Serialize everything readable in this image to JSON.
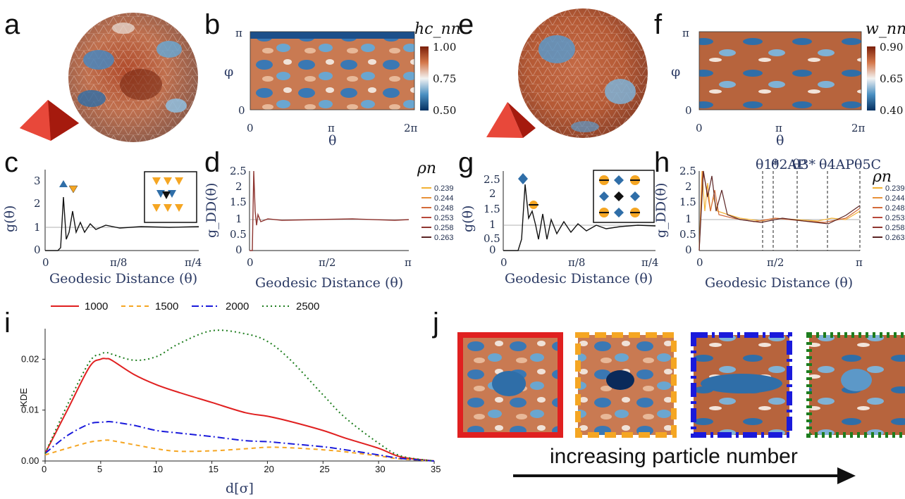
{
  "panel_labels": [
    "a",
    "b",
    "c",
    "d",
    "e",
    "f",
    "g",
    "h",
    "i",
    "j"
  ],
  "colors": {
    "low": "#053061",
    "mid": "#f2f2f2",
    "high": "#7a1f0a",
    "accent_red": "#e02020",
    "orange": "#f5a623",
    "blue": "#1a1adb",
    "green": "#1e7d1e"
  },
  "map_b": {
    "colorbar_label": "hc_nn",
    "cb_ticks": [
      "1.00",
      "0.75",
      "0.50"
    ],
    "y_ticks": [
      "π",
      "0"
    ],
    "x_ticks": [
      "0",
      "π",
      "2π"
    ],
    "ylabel": "φ",
    "xlabel": "θ"
  },
  "map_f": {
    "colorbar_label": "w_nn",
    "cb_ticks": [
      "0.90",
      "0.65",
      "0.40"
    ],
    "y_ticks": [
      "π",
      "0"
    ],
    "x_ticks": [
      "0",
      "π",
      "2π"
    ],
    "ylabel": "φ",
    "xlabel": "θ"
  },
  "panel_c": {
    "ylabel": "g(θ)",
    "xlabel": "Geodesic Distance (θ)",
    "y_ticks": [
      "3",
      "2",
      "1",
      "0"
    ],
    "x_ticks": [
      "0",
      "π/8",
      "π/4"
    ]
  },
  "panel_d": {
    "ylabel": "g_DD(θ)",
    "xlabel": "Geodesic Distance (θ)",
    "y_ticks": [
      "2.5",
      "2",
      "1.5",
      "1",
      "0.5",
      "0"
    ],
    "x_ticks": [
      "0",
      "π/2",
      "π"
    ],
    "legend_title": "ρn",
    "legend": [
      "0.239",
      "0.244",
      "0.248",
      "0.253",
      "0.258",
      "0.263"
    ]
  },
  "panel_g": {
    "ylabel": "g(θ)",
    "xlabel": "Geodesic Distance (θ)",
    "y_ticks": [
      "2.5",
      "2",
      "1.5",
      "1",
      "0.5",
      "0"
    ],
    "x_ticks": [
      "0",
      "π/8",
      "π/4"
    ]
  },
  "panel_h": {
    "ylabel": "g_DD(θ)",
    "xlabel": "Geodesic Distance (θ)",
    "y_ticks": [
      "2.5",
      "2",
      "1.5",
      "1",
      "0.5",
      "0"
    ],
    "x_ticks": [
      "0",
      "π/2",
      "π"
    ],
    "legend_title": "ρn",
    "legend": [
      "0.239",
      "0.244",
      "0.248",
      "0.253",
      "0.258",
      "0.263"
    ],
    "markers": [
      "θ1*",
      "θ2AP",
      "θ3*",
      "θ4AP",
      "θ5C"
    ]
  },
  "legend_colors": [
    "#f2b134",
    "#e8913a",
    "#d36a3a",
    "#b8483a",
    "#8e3530",
    "#5a2424"
  ],
  "chart_data": {
    "type": "line",
    "title": "",
    "xlabel": "d[σ]",
    "ylabel": "KDE",
    "xlim": [
      0,
      35
    ],
    "ylim": [
      0,
      0.026
    ],
    "x_ticks": [
      "0",
      "5",
      "10",
      "15",
      "20",
      "25",
      "30",
      "35"
    ],
    "y_ticks": [
      "0.00",
      "0.01",
      "0.02"
    ],
    "legend_position": "top",
    "x": [
      0,
      2,
      4,
      5,
      5.5,
      6,
      8,
      10,
      12,
      15,
      18,
      20,
      22,
      25,
      27,
      30,
      32,
      35
    ],
    "series": [
      {
        "name": "1000",
        "color": "#e02020",
        "dash": "",
        "values": [
          0.0015,
          0.01,
          0.0185,
          0.02,
          0.0201,
          0.0198,
          0.017,
          0.015,
          0.0135,
          0.0115,
          0.0095,
          0.0088,
          0.0078,
          0.006,
          0.0045,
          0.0025,
          0.0008,
          0.0
        ]
      },
      {
        "name": "1500",
        "color": "#f5a623",
        "dash": "6,5",
        "values": [
          0.0012,
          0.0025,
          0.0037,
          0.004,
          0.0041,
          0.004,
          0.0032,
          0.0024,
          0.0019,
          0.002,
          0.0024,
          0.0027,
          0.0026,
          0.0022,
          0.0018,
          0.001,
          0.0004,
          0.0
        ]
      },
      {
        "name": "2000",
        "color": "#1a1adb",
        "dash": "10,4,2,4",
        "values": [
          0.0015,
          0.005,
          0.0073,
          0.0076,
          0.0077,
          0.0077,
          0.007,
          0.006,
          0.0055,
          0.0048,
          0.004,
          0.0038,
          0.0034,
          0.0028,
          0.0022,
          0.0012,
          0.0005,
          0.0
        ]
      },
      {
        "name": "2500",
        "color": "#1e7d1e",
        "dash": "2,4",
        "values": [
          0.0015,
          0.011,
          0.0195,
          0.021,
          0.0213,
          0.021,
          0.0198,
          0.0205,
          0.023,
          0.0256,
          0.025,
          0.0235,
          0.02,
          0.013,
          0.0085,
          0.0035,
          0.001,
          0.0
        ]
      }
    ]
  },
  "caption_j": "increasing particle number"
}
